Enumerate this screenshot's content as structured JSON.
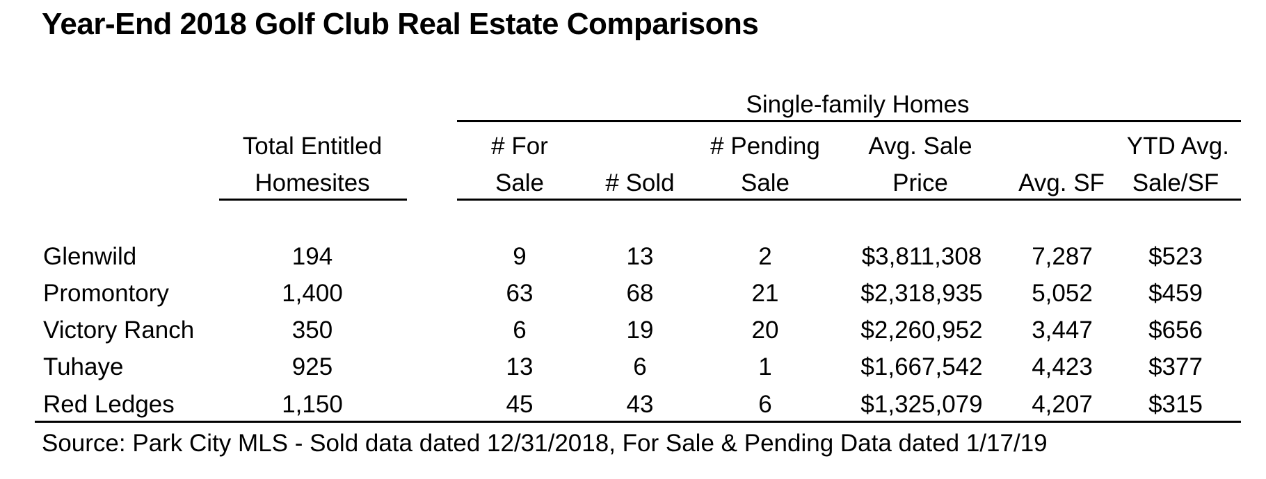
{
  "title": "Year-End 2018 Golf Club Real Estate Comparisons",
  "group_header": "Single-family Homes",
  "columns": {
    "homesites": [
      "Total Entitled",
      "Homesites"
    ],
    "for_sale": [
      "# For",
      "Sale"
    ],
    "sold": [
      "",
      "# Sold"
    ],
    "pending": [
      "# Pending",
      "Sale"
    ],
    "avg_price": [
      "Avg. Sale",
      "Price"
    ],
    "avg_sf": [
      "",
      "Avg. SF"
    ],
    "ytd": [
      "YTD Avg.",
      "Sale/SF"
    ]
  },
  "rows": [
    {
      "name": "Glenwild",
      "homesites": "194",
      "for_sale": "9",
      "sold": "13",
      "pending": "2",
      "avg_price": "$3,811,308",
      "avg_sf": "7,287",
      "ytd": "$523"
    },
    {
      "name": "Promontory",
      "homesites": "1,400",
      "for_sale": "63",
      "sold": "68",
      "pending": "21",
      "avg_price": "$2,318,935",
      "avg_sf": "5,052",
      "ytd": "$459"
    },
    {
      "name": "Victory Ranch",
      "homesites": "350",
      "for_sale": "6",
      "sold": "19",
      "pending": "20",
      "avg_price": "$2,260,952",
      "avg_sf": "3,447",
      "ytd": "$656"
    },
    {
      "name": "Tuhaye",
      "homesites": "925",
      "for_sale": "13",
      "sold": "6",
      "pending": "1",
      "avg_price": "$1,667,542",
      "avg_sf": "4,423",
      "ytd": "$377"
    },
    {
      "name": "Red Ledges",
      "homesites": "1,150",
      "for_sale": "45",
      "sold": "43",
      "pending": "6",
      "avg_price": "$1,325,079",
      "avg_sf": "4,207",
      "ytd": "$315"
    }
  ],
  "source": "Source: Park City MLS - Sold data dated 12/31/2018, For Sale & Pending Data dated 1/17/19"
}
